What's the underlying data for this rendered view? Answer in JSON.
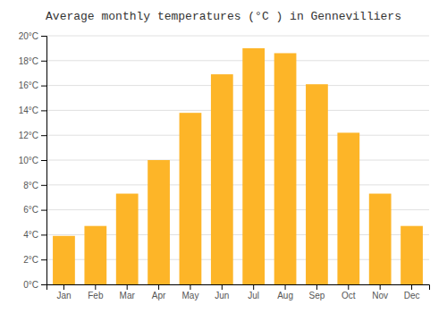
{
  "chart_data": {
    "type": "bar",
    "title": "Average monthly temperatures (°C ) in Gennevilliers",
    "categories": [
      "Jan",
      "Feb",
      "Mar",
      "Apr",
      "May",
      "Jun",
      "Jul",
      "Aug",
      "Sep",
      "Oct",
      "Nov",
      "Dec"
    ],
    "values": [
      3.9,
      4.7,
      7.3,
      10.0,
      13.8,
      16.9,
      19.0,
      18.6,
      16.1,
      12.2,
      7.3,
      4.7
    ],
    "color": "#FDB528",
    "ylim": [
      0,
      20
    ],
    "yticks": [
      {
        "value": 0,
        "label": "0°C"
      },
      {
        "value": 2,
        "label": "2°C"
      },
      {
        "value": 4,
        "label": "4°C"
      },
      {
        "value": 6,
        "label": "6°C"
      },
      {
        "value": 8,
        "label": "8°C"
      },
      {
        "value": 10,
        "label": "10°C"
      },
      {
        "value": 12,
        "label": "12°C"
      },
      {
        "value": 14,
        "label": "14°C"
      },
      {
        "value": 16,
        "label": "16°C"
      },
      {
        "value": 18,
        "label": "18°C"
      },
      {
        "value": 20,
        "label": "20°C"
      }
    ],
    "grid": true
  }
}
